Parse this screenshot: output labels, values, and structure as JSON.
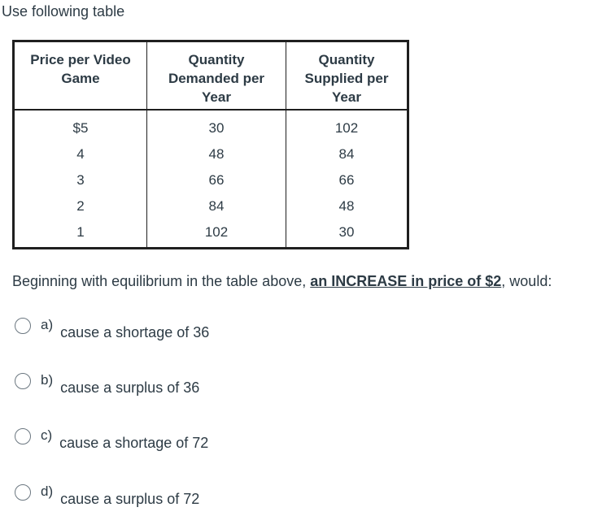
{
  "instruction": "Use following table",
  "table": {
    "headers": [
      [
        "Price per Video",
        "Game"
      ],
      [
        "Quantity",
        "Demanded per",
        "Year"
      ],
      [
        "Quantity",
        "Supplied per",
        "Year"
      ]
    ],
    "rows": [
      [
        "$5",
        "30",
        "102"
      ],
      [
        "4",
        "48",
        "84"
      ],
      [
        "3",
        "66",
        "66"
      ],
      [
        "2",
        "84",
        "48"
      ],
      [
        "1",
        "102",
        "30"
      ]
    ]
  },
  "question": {
    "prefix": "Beginning with equilibrium in the table above, ",
    "emphasis": "an INCREASE in price of $2",
    "suffix": ", would:"
  },
  "options": [
    {
      "letter": "a)",
      "text": "cause a shortage of 36"
    },
    {
      "letter": "b)",
      "text": "cause a surplus of 36"
    },
    {
      "letter": "c)",
      "text": "cause a shortage of 72"
    },
    {
      "letter": "d)",
      "text": "cause a surplus of 72"
    }
  ]
}
